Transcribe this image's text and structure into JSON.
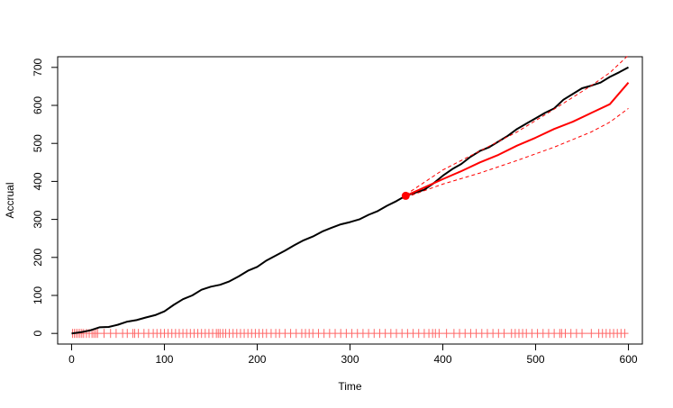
{
  "chart_data": {
    "type": "line",
    "title": "",
    "xlabel": "Time",
    "ylabel": "Accrual",
    "xlim": [
      -15,
      615
    ],
    "ylim": [
      -28,
      728
    ],
    "x_ticks": [
      0,
      100,
      200,
      300,
      400,
      500,
      600
    ],
    "y_ticks": [
      0,
      100,
      200,
      300,
      400,
      500,
      600,
      700
    ],
    "grid": false,
    "legend": "none",
    "colors": {
      "observed": "#000000",
      "prediction": "#ff0000",
      "bounds": "#ff0000",
      "rug": "#ff6666"
    },
    "series": [
      {
        "style": "solid",
        "color": "#000000",
        "points": [
          [
            0,
            0
          ],
          [
            10,
            3
          ],
          [
            20,
            8
          ],
          [
            30,
            16
          ],
          [
            40,
            17
          ],
          [
            50,
            23
          ],
          [
            60,
            31
          ],
          [
            70,
            35
          ],
          [
            80,
            42
          ],
          [
            90,
            48
          ],
          [
            100,
            58
          ],
          [
            110,
            75
          ],
          [
            120,
            90
          ],
          [
            130,
            100
          ],
          [
            140,
            115
          ],
          [
            150,
            123
          ],
          [
            160,
            128
          ],
          [
            170,
            137
          ],
          [
            180,
            150
          ],
          [
            190,
            165
          ],
          [
            200,
            175
          ],
          [
            210,
            192
          ],
          [
            220,
            205
          ],
          [
            230,
            218
          ],
          [
            240,
            232
          ],
          [
            250,
            245
          ],
          [
            260,
            255
          ],
          [
            270,
            268
          ],
          [
            280,
            278
          ],
          [
            290,
            287
          ],
          [
            300,
            293
          ],
          [
            310,
            300
          ],
          [
            320,
            312
          ],
          [
            330,
            322
          ],
          [
            340,
            336
          ],
          [
            350,
            348
          ],
          [
            360,
            362
          ],
          [
            370,
            370
          ],
          [
            380,
            378
          ],
          [
            390,
            395
          ],
          [
            400,
            415
          ],
          [
            410,
            432
          ],
          [
            420,
            446
          ],
          [
            430,
            465
          ],
          [
            440,
            480
          ],
          [
            450,
            490
          ],
          [
            460,
            505
          ],
          [
            470,
            520
          ],
          [
            480,
            538
          ],
          [
            490,
            552
          ],
          [
            500,
            566
          ],
          [
            510,
            580
          ],
          [
            520,
            592
          ],
          [
            530,
            615
          ],
          [
            540,
            630
          ],
          [
            550,
            645
          ],
          [
            560,
            652
          ],
          [
            570,
            660
          ],
          [
            580,
            675
          ],
          [
            590,
            687
          ],
          [
            600,
            700
          ]
        ]
      },
      {
        "style": "solid",
        "color": "#ff0000",
        "points": [
          [
            360,
            362
          ],
          [
            380,
            384
          ],
          [
            400,
            406
          ],
          [
            420,
            427
          ],
          [
            440,
            450
          ],
          [
            460,
            470
          ],
          [
            480,
            494
          ],
          [
            500,
            515
          ],
          [
            520,
            538
          ],
          [
            540,
            557
          ],
          [
            560,
            580
          ],
          [
            580,
            603
          ],
          [
            600,
            660
          ]
        ]
      },
      {
        "style": "dashed",
        "color": "#ff0000",
        "points": [
          [
            360,
            365
          ],
          [
            400,
            430
          ],
          [
            440,
            480
          ],
          [
            480,
            530
          ],
          [
            520,
            590
          ],
          [
            560,
            652
          ],
          [
            580,
            686
          ],
          [
            600,
            732
          ]
        ]
      },
      {
        "style": "dashed",
        "color": "#ff0000",
        "points": [
          [
            360,
            358
          ],
          [
            400,
            393
          ],
          [
            440,
            422
          ],
          [
            480,
            455
          ],
          [
            520,
            490
          ],
          [
            560,
            530
          ],
          [
            580,
            556
          ],
          [
            600,
            592
          ]
        ]
      }
    ],
    "rug_times": [
      1,
      3,
      5,
      7,
      9,
      11,
      13,
      16,
      19,
      22,
      24,
      26,
      28,
      35,
      42,
      48,
      55,
      60,
      66,
      68,
      72,
      78,
      83,
      88,
      92,
      96,
      100,
      104,
      108,
      112,
      116,
      120,
      124,
      128,
      132,
      136,
      140,
      144,
      148,
      152,
      156,
      158,
      160,
      163,
      166,
      170,
      174,
      178,
      182,
      186,
      190,
      194,
      198,
      202,
      206,
      210,
      215,
      220,
      224,
      230,
      236,
      242,
      248,
      252,
      256,
      260,
      266,
      272,
      278,
      284,
      290,
      296,
      302,
      308,
      314,
      320,
      326,
      332,
      338,
      344,
      350,
      356,
      362,
      368,
      374,
      380,
      385,
      389,
      392,
      396,
      404,
      412,
      418,
      424,
      430,
      436,
      442,
      448,
      454,
      460,
      466,
      474,
      478,
      482,
      486,
      490,
      496,
      502,
      508,
      514,
      520,
      526,
      528,
      532,
      538,
      544,
      550,
      560,
      568,
      572,
      576,
      580,
      584,
      588,
      592,
      596
    ],
    "highlight_point": {
      "x": 360,
      "y": 362,
      "color": "#ff0000"
    }
  }
}
